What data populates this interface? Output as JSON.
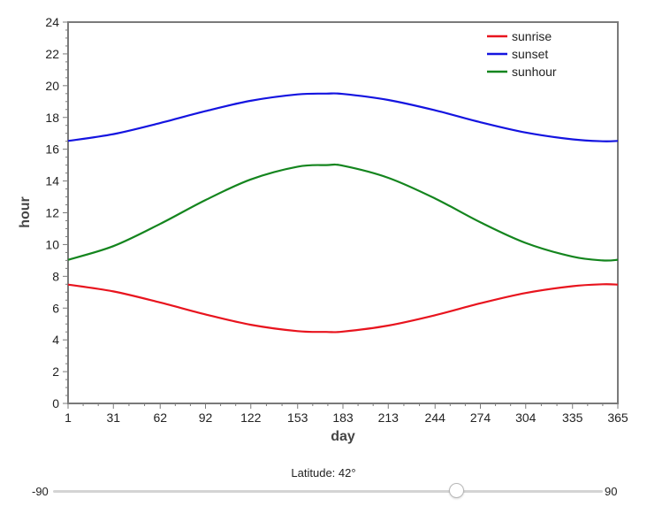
{
  "chart_data": {
    "type": "line",
    "title": "",
    "xlabel": "day",
    "ylabel": "hour",
    "xlim": [
      1,
      365
    ],
    "ylim": [
      0,
      24
    ],
    "x_ticks": [
      1,
      31,
      62,
      92,
      122,
      153,
      183,
      213,
      244,
      274,
      304,
      335,
      365
    ],
    "y_ticks": [
      0,
      2,
      4,
      6,
      8,
      10,
      12,
      14,
      16,
      18,
      20,
      22,
      24
    ],
    "legend_position": "top-right",
    "grid": false,
    "series": [
      {
        "name": "sunrise",
        "color": "#e8141e",
        "x": [
          1,
          31,
          62,
          92,
          122,
          153,
          172,
          183,
          213,
          244,
          274,
          304,
          335,
          355,
          365
        ],
        "y": [
          7.48,
          7.05,
          6.35,
          5.6,
          4.95,
          4.55,
          4.5,
          4.52,
          4.9,
          5.55,
          6.3,
          6.95,
          7.38,
          7.5,
          7.48
        ]
      },
      {
        "name": "sunset",
        "color": "#1414e0",
        "x": [
          1,
          31,
          62,
          92,
          122,
          153,
          172,
          183,
          213,
          244,
          274,
          304,
          335,
          355,
          365
        ],
        "y": [
          16.52,
          16.95,
          17.65,
          18.4,
          19.05,
          19.45,
          19.5,
          19.48,
          19.1,
          18.45,
          17.7,
          17.05,
          16.62,
          16.5,
          16.52
        ]
      },
      {
        "name": "sunhour",
        "color": "#14851e",
        "x": [
          1,
          31,
          62,
          92,
          122,
          153,
          172,
          183,
          213,
          244,
          274,
          304,
          335,
          355,
          365
        ],
        "y": [
          9.04,
          9.9,
          11.3,
          12.8,
          14.1,
          14.9,
          15.0,
          14.96,
          14.2,
          12.9,
          11.4,
          10.1,
          9.24,
          9.0,
          9.04
        ]
      }
    ]
  },
  "slider": {
    "label": "Latitude: 42°",
    "min_label": "-90",
    "max_label": "90",
    "value": 42,
    "min": -90,
    "max": 90
  }
}
